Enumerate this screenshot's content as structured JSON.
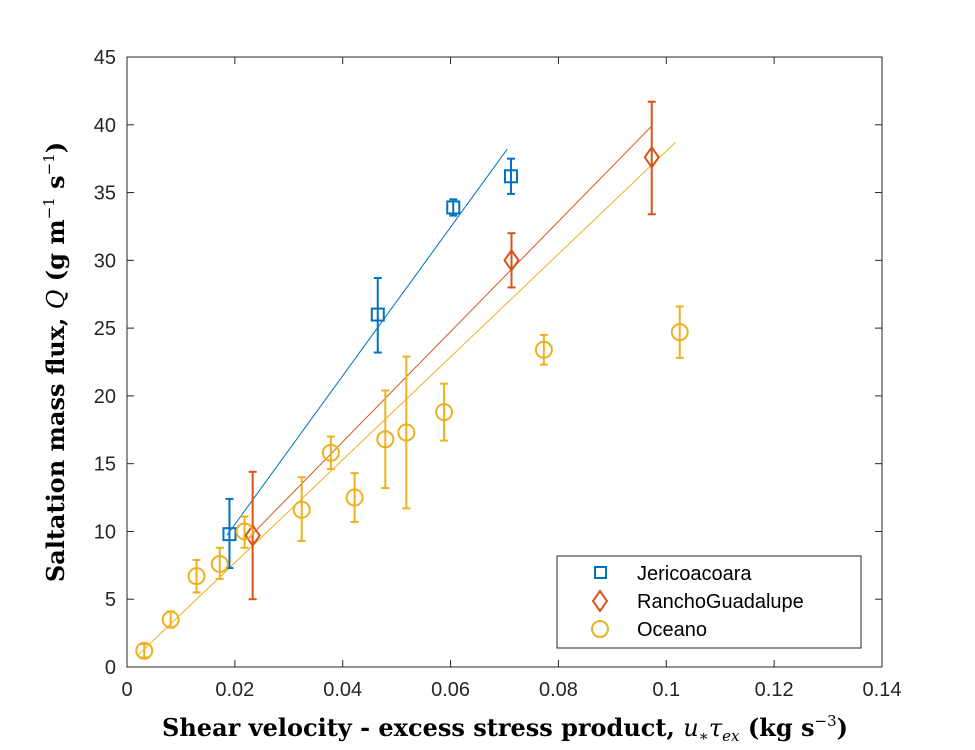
{
  "chart_data": {
    "type": "scatter",
    "title": "",
    "xlabel": "Shear velocity - excess stress product, u*τex (kg s^-3)",
    "ylabel": "Saltation mass flux, Q (g m^-1 s^-1)",
    "xlabel_text": "Shear velocity - excess stress product,",
    "xlabel_math_u": "u",
    "xlabel_math_star": "∗",
    "xlabel_math_tau": "τ",
    "xlabel_math_ex": "ex",
    "xlabel_unit": "(kg s",
    "xlabel_unit_exp": "−3",
    "xlabel_unit_close": ")",
    "ylabel_text": "Saltation mass flux,",
    "ylabel_math_q": "Q",
    "ylabel_unit_1": "(g m",
    "ylabel_unit_exp1": "−1",
    "ylabel_unit_2": "s",
    "ylabel_unit_exp2": "−1",
    "ylabel_unit_close": ")",
    "xlim": [
      0,
      0.14
    ],
    "ylim": [
      0,
      45
    ],
    "x_ticks": [
      0,
      0.02,
      0.04,
      0.06,
      0.08,
      0.1,
      0.12,
      0.14
    ],
    "x_tick_labels": [
      "0",
      "0.02",
      "0.04",
      "0.06",
      "0.08",
      "0.1",
      "0.12",
      "0.14"
    ],
    "y_ticks": [
      0,
      5,
      10,
      15,
      20,
      25,
      30,
      35,
      40,
      45
    ],
    "y_tick_labels": [
      "0",
      "5",
      "10",
      "15",
      "20",
      "25",
      "30",
      "35",
      "40",
      "45"
    ],
    "grid": false,
    "legend_position": "bottom-right",
    "series": [
      {
        "name": "Jericoacoara",
        "marker": "square",
        "color": "#0072BD",
        "points": [
          {
            "x": 0.019,
            "y": 9.8,
            "err_low": 2.5,
            "err_high": 2.6
          },
          {
            "x": 0.0465,
            "y": 26.0,
            "err_low": 2.8,
            "err_high": 2.7
          },
          {
            "x": 0.0605,
            "y": 33.9,
            "err_low": 0.6,
            "err_high": 0.6
          },
          {
            "x": 0.0712,
            "y": 36.2,
            "err_low": 1.3,
            "err_high": 1.3
          }
        ],
        "fit": {
          "x": [
            0.0185,
            0.0705
          ],
          "y": [
            9.7,
            38.2
          ]
        }
      },
      {
        "name": "RanchoGuadalupe",
        "marker": "diamond",
        "color": "#D95319",
        "points": [
          {
            "x": 0.0233,
            "y": 9.7,
            "err_low": 4.7,
            "err_high": 4.7
          },
          {
            "x": 0.0713,
            "y": 30.0,
            "err_low": 2.0,
            "err_high": 2.0
          },
          {
            "x": 0.0973,
            "y": 37.6,
            "err_low": 4.2,
            "err_high": 4.1
          }
        ],
        "fit": {
          "x": [
            0.0225,
            0.0973
          ],
          "y": [
            9.5,
            39.9
          ]
        }
      },
      {
        "name": "Oceano",
        "marker": "circle",
        "color": "#EDB120",
        "points": [
          {
            "x": 0.0032,
            "y": 1.2,
            "err_low": 0.5,
            "err_high": 0.5
          },
          {
            "x": 0.0081,
            "y": 3.5,
            "err_low": 0.6,
            "err_high": 0.6
          },
          {
            "x": 0.0129,
            "y": 6.7,
            "err_low": 1.2,
            "err_high": 1.2
          },
          {
            "x": 0.0172,
            "y": 7.6,
            "err_low": 1.1,
            "err_high": 1.2
          },
          {
            "x": 0.0218,
            "y": 10.0,
            "err_low": 1.2,
            "err_high": 1.1
          },
          {
            "x": 0.0324,
            "y": 11.6,
            "err_low": 2.3,
            "err_high": 2.4
          },
          {
            "x": 0.0378,
            "y": 15.8,
            "err_low": 1.2,
            "err_high": 1.2
          },
          {
            "x": 0.0422,
            "y": 12.5,
            "err_low": 1.8,
            "err_high": 1.8
          },
          {
            "x": 0.0479,
            "y": 16.8,
            "err_low": 3.6,
            "err_high": 3.6
          },
          {
            "x": 0.0518,
            "y": 17.3,
            "err_low": 5.6,
            "err_high": 5.6
          },
          {
            "x": 0.0588,
            "y": 18.8,
            "err_low": 2.1,
            "err_high": 2.1
          },
          {
            "x": 0.0773,
            "y": 23.4,
            "err_low": 1.1,
            "err_high": 1.1
          },
          {
            "x": 0.1025,
            "y": 24.7,
            "err_low": 1.9,
            "err_high": 1.9
          }
        ],
        "fit": {
          "x": [
            0.0021,
            0.1017
          ],
          "y": [
            0.9,
            38.7
          ]
        }
      }
    ]
  }
}
